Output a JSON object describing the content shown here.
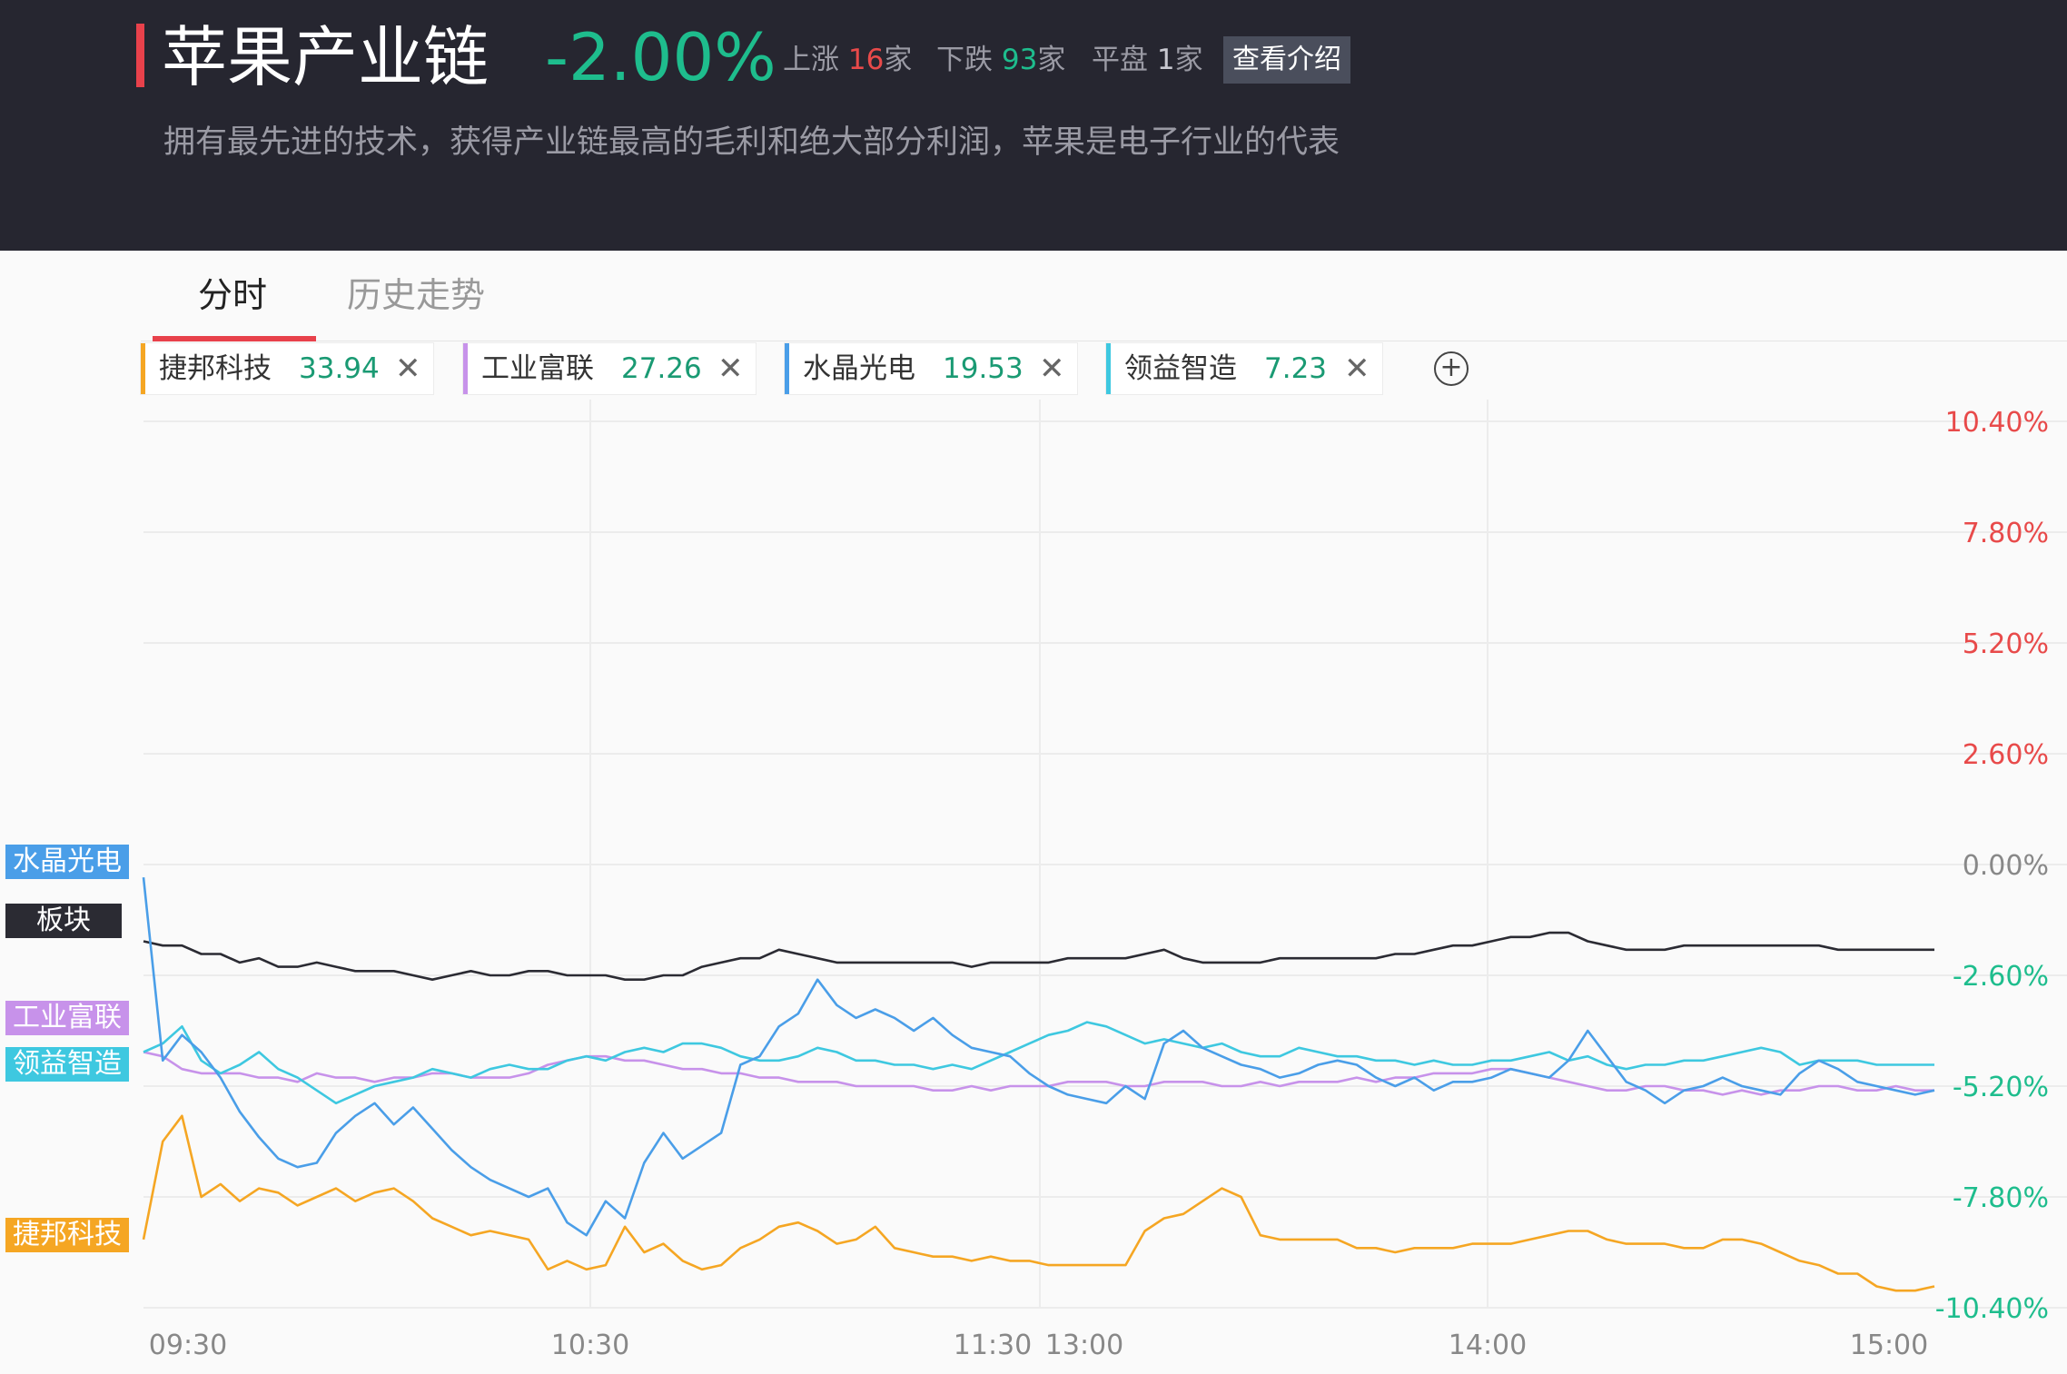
{
  "header": {
    "title": "苹果产业链",
    "change_pct": "-2.00%",
    "up_label": "上涨",
    "up_count": "16",
    "down_label": "下跌",
    "down_count": "93",
    "flat_label": "平盘",
    "flat_count": "1",
    "unit": "家",
    "intro_button": "查看介绍",
    "description": "拥有最先进的技术，获得产业链最高的毛利和绝大部分利润，苹果是电子行业的代表"
  },
  "tabs": [
    {
      "label": "分时",
      "active": true
    },
    {
      "label": "历史走势",
      "active": false
    }
  ],
  "stocks": [
    {
      "name": "捷邦科技",
      "price": "33.94",
      "color": "#f5a623"
    },
    {
      "name": "工业富联",
      "price": "27.26",
      "color": "#c792ea"
    },
    {
      "name": "水晶光电",
      "price": "19.53",
      "color": "#4a9ee8"
    },
    {
      "name": "领益智造",
      "price": "7.23",
      "color": "#3ec8e0"
    }
  ],
  "close_icon": "close-icon",
  "add_icon": "plus-circle-icon",
  "side_labels": {
    "crystal": "水晶光电",
    "sector": "板块",
    "foxconn": "工业富联",
    "lingyi": "领益智造",
    "jiebang": "捷邦科技"
  },
  "colors": {
    "sector": "#2b2b33",
    "up": "#e84a4a",
    "down": "#1ebd8d",
    "jiebang": "#f5a623",
    "foxconn": "#c792ea",
    "crystal": "#4a9ee8",
    "lingyi": "#3ec8e0"
  },
  "chart_data": {
    "type": "line",
    "x_ticks": [
      "09:30",
      "10:30",
      "11:30",
      "13:00",
      "14:00",
      "15:00"
    ],
    "y_ticks": [
      "10.40%",
      "7.80%",
      "5.20%",
      "2.60%",
      "0.00%",
      "-2.60%",
      "-5.20%",
      "-7.80%",
      "-10.40%"
    ],
    "ylim": [
      -10.4,
      10.4
    ],
    "grid": true,
    "series": [
      {
        "name": "板块",
        "color": "#2b2b33",
        "values": [
          -1.8,
          -1.9,
          -1.9,
          -2.1,
          -2.1,
          -2.3,
          -2.2,
          -2.4,
          -2.4,
          -2.3,
          -2.4,
          -2.5,
          -2.5,
          -2.5,
          -2.6,
          -2.7,
          -2.6,
          -2.5,
          -2.6,
          -2.6,
          -2.5,
          -2.5,
          -2.6,
          -2.6,
          -2.6,
          -2.7,
          -2.7,
          -2.6,
          -2.6,
          -2.4,
          -2.3,
          -2.2,
          -2.2,
          -2.0,
          -2.1,
          -2.2,
          -2.3,
          -2.3,
          -2.3,
          -2.3,
          -2.3,
          -2.3,
          -2.3,
          -2.4,
          -2.3,
          -2.3,
          -2.3,
          -2.3,
          -2.2,
          -2.2,
          -2.2,
          -2.2,
          -2.1,
          -2.0,
          -2.2,
          -2.3,
          -2.3,
          -2.3,
          -2.3,
          -2.2,
          -2.2,
          -2.2,
          -2.2,
          -2.2,
          -2.2,
          -2.1,
          -2.1,
          -2.0,
          -1.9,
          -1.9,
          -1.8,
          -1.7,
          -1.7,
          -1.6,
          -1.6,
          -1.8,
          -1.9,
          -2.0,
          -2.0,
          -2.0,
          -1.9,
          -1.9,
          -1.9,
          -1.9,
          -1.9,
          -1.9,
          -1.9,
          -1.9,
          -2.0,
          -2.0,
          -2.0,
          -2.0,
          -2.0,
          -2.0
        ]
      },
      {
        "name": "工业富联",
        "color": "#c792ea",
        "values": [
          -4.4,
          -4.5,
          -4.8,
          -4.9,
          -4.9,
          -4.9,
          -5.0,
          -5.0,
          -5.1,
          -4.9,
          -5.0,
          -5.0,
          -5.1,
          -5.0,
          -5.0,
          -4.9,
          -4.9,
          -5.0,
          -5.0,
          -5.0,
          -4.9,
          -4.7,
          -4.6,
          -4.5,
          -4.5,
          -4.6,
          -4.6,
          -4.7,
          -4.8,
          -4.8,
          -4.9,
          -4.9,
          -5.0,
          -5.0,
          -5.1,
          -5.1,
          -5.1,
          -5.2,
          -5.2,
          -5.2,
          -5.2,
          -5.3,
          -5.3,
          -5.2,
          -5.3,
          -5.2,
          -5.2,
          -5.2,
          -5.1,
          -5.1,
          -5.1,
          -5.2,
          -5.2,
          -5.1,
          -5.1,
          -5.1,
          -5.2,
          -5.2,
          -5.1,
          -5.2,
          -5.1,
          -5.1,
          -5.1,
          -5.0,
          -5.1,
          -5.0,
          -5.0,
          -4.9,
          -4.9,
          -4.9,
          -4.8,
          -4.8,
          -4.9,
          -5.0,
          -5.1,
          -5.2,
          -5.3,
          -5.3,
          -5.2,
          -5.2,
          -5.3,
          -5.3,
          -5.4,
          -5.3,
          -5.4,
          -5.3,
          -5.3,
          -5.2,
          -5.2,
          -5.3,
          -5.3,
          -5.2,
          -5.3,
          -5.3
        ]
      },
      {
        "name": "领益智造",
        "color": "#3ec8e0",
        "values": [
          -4.4,
          -4.2,
          -3.8,
          -4.6,
          -4.9,
          -4.7,
          -4.4,
          -4.8,
          -5.0,
          -5.3,
          -5.6,
          -5.4,
          -5.2,
          -5.1,
          -5.0,
          -4.8,
          -4.9,
          -5.0,
          -4.8,
          -4.7,
          -4.8,
          -4.8,
          -4.6,
          -4.5,
          -4.6,
          -4.4,
          -4.3,
          -4.4,
          -4.2,
          -4.2,
          -4.3,
          -4.5,
          -4.6,
          -4.6,
          -4.5,
          -4.3,
          -4.4,
          -4.6,
          -4.6,
          -4.7,
          -4.7,
          -4.8,
          -4.7,
          -4.8,
          -4.6,
          -4.4,
          -4.2,
          -4.0,
          -3.9,
          -3.7,
          -3.8,
          -4.0,
          -4.2,
          -4.1,
          -4.2,
          -4.3,
          -4.2,
          -4.4,
          -4.5,
          -4.5,
          -4.3,
          -4.4,
          -4.5,
          -4.5,
          -4.6,
          -4.6,
          -4.7,
          -4.6,
          -4.7,
          -4.7,
          -4.6,
          -4.6,
          -4.5,
          -4.4,
          -4.6,
          -4.5,
          -4.7,
          -4.8,
          -4.7,
          -4.7,
          -4.6,
          -4.6,
          -4.5,
          -4.4,
          -4.3,
          -4.4,
          -4.7,
          -4.6,
          -4.6,
          -4.6,
          -4.7,
          -4.7,
          -4.7,
          -4.7
        ]
      },
      {
        "name": "水晶光电",
        "color": "#4a9ee8",
        "values": [
          -0.3,
          -4.6,
          -4.0,
          -4.4,
          -5.0,
          -5.8,
          -6.4,
          -6.9,
          -7.1,
          -7.0,
          -6.3,
          -5.9,
          -5.6,
          -6.1,
          -5.7,
          -6.2,
          -6.7,
          -7.1,
          -7.4,
          -7.6,
          -7.8,
          -7.6,
          -8.4,
          -8.7,
          -7.9,
          -8.3,
          -7.0,
          -6.3,
          -6.9,
          -6.6,
          -6.3,
          -4.7,
          -4.5,
          -3.8,
          -3.5,
          -2.7,
          -3.3,
          -3.6,
          -3.4,
          -3.6,
          -3.9,
          -3.6,
          -4.0,
          -4.3,
          -4.4,
          -4.5,
          -4.9,
          -5.2,
          -5.4,
          -5.5,
          -5.6,
          -5.2,
          -5.5,
          -4.2,
          -3.9,
          -4.3,
          -4.5,
          -4.7,
          -4.8,
          -5.0,
          -4.9,
          -4.7,
          -4.6,
          -4.7,
          -5.0,
          -5.2,
          -5.0,
          -5.3,
          -5.1,
          -5.1,
          -5.0,
          -4.8,
          -4.9,
          -5.0,
          -4.6,
          -3.9,
          -4.5,
          -5.1,
          -5.3,
          -5.6,
          -5.3,
          -5.2,
          -5.0,
          -5.2,
          -5.3,
          -5.4,
          -4.9,
          -4.6,
          -4.8,
          -5.1,
          -5.2,
          -5.3,
          -5.4,
          -5.3
        ]
      },
      {
        "name": "捷邦科技",
        "color": "#f5a623",
        "values": [
          -8.8,
          -6.5,
          -5.9,
          -7.8,
          -7.5,
          -7.9,
          -7.6,
          -7.7,
          -8.0,
          -7.8,
          -7.6,
          -7.9,
          -7.7,
          -7.6,
          -7.9,
          -8.3,
          -8.5,
          -8.7,
          -8.6,
          -8.7,
          -8.8,
          -9.5,
          -9.3,
          -9.5,
          -9.4,
          -8.5,
          -9.1,
          -8.9,
          -9.3,
          -9.5,
          -9.4,
          -9.0,
          -8.8,
          -8.5,
          -8.4,
          -8.6,
          -8.9,
          -8.8,
          -8.5,
          -9.0,
          -9.1,
          -9.2,
          -9.2,
          -9.3,
          -9.2,
          -9.3,
          -9.3,
          -9.4,
          -9.4,
          -9.4,
          -9.4,
          -9.4,
          -8.6,
          -8.3,
          -8.2,
          -7.9,
          -7.6,
          -7.8,
          -8.7,
          -8.8,
          -8.8,
          -8.8,
          -8.8,
          -9.0,
          -9.0,
          -9.1,
          -9.0,
          -9.0,
          -9.0,
          -8.9,
          -8.9,
          -8.9,
          -8.8,
          -8.7,
          -8.6,
          -8.6,
          -8.8,
          -8.9,
          -8.9,
          -8.9,
          -9.0,
          -9.0,
          -8.8,
          -8.8,
          -8.9,
          -9.1,
          -9.3,
          -9.4,
          -9.6,
          -9.6,
          -9.9,
          -10.0,
          -10.0,
          -9.9
        ]
      }
    ]
  }
}
